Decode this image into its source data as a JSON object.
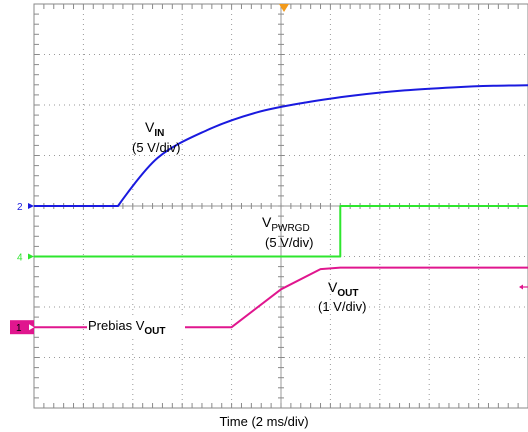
{
  "chart_data": {
    "type": "line",
    "xlabel": "Time (2 ms/div)",
    "grid": true,
    "x_divisions": 10,
    "y_divisions": 8,
    "xlim": [
      0,
      10
    ],
    "ylim": [
      0,
      8
    ],
    "series": [
      {
        "name": "VIN",
        "channel": "2",
        "color": "#1a1adf",
        "note": "5 V/div",
        "x": [
          0,
          1.7,
          2.5,
          3.5,
          4.5,
          5.5,
          6.5,
          7.5,
          8.5,
          9.3,
          10
        ],
        "y": [
          4.0,
          4.0,
          4.95,
          5.5,
          5.85,
          6.05,
          6.19,
          6.29,
          6.35,
          6.38,
          6.39
        ]
      },
      {
        "name": "VPWRGD",
        "channel": "4",
        "color": "#2ee62e",
        "note": "5 V/div",
        "x": [
          0,
          6.2,
          6.2,
          10
        ],
        "y": [
          3.0,
          3.0,
          4.0,
          4.0
        ]
      },
      {
        "name": "VOUT",
        "channel": "1",
        "color": "#e0168e",
        "note": "1 V/div",
        "x": [
          0,
          4.0,
          5.0,
          5.8,
          6.2,
          7.0,
          10
        ],
        "y": [
          1.6,
          1.6,
          2.35,
          2.75,
          2.78,
          2.78,
          2.78
        ]
      }
    ],
    "annotations": {
      "vin_name": "V",
      "vin_sub": "IN",
      "vin_scale": "(5 V/div)",
      "pwrgd_name": "V",
      "pwrgd_sub": "PWRGD",
      "pwrgd_scale": "(5 V/div)",
      "vout_name": "V",
      "vout_sub": "OUT",
      "vout_scale": "(1 V/div)",
      "prebias_text": "Prebias V",
      "prebias_sub": "OUT"
    },
    "markers": [
      "2",
      "4",
      "1"
    ]
  }
}
